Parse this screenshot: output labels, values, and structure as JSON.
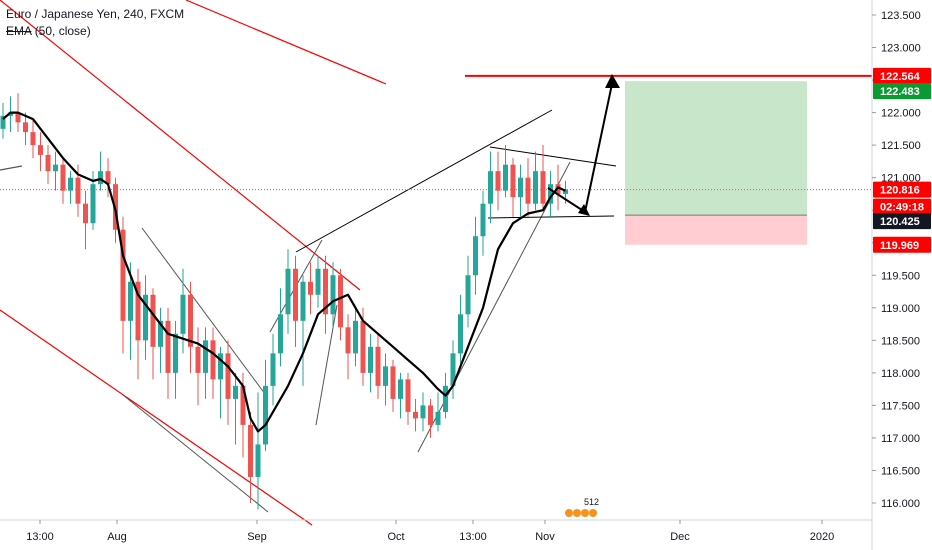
{
  "legend": {
    "symbol_line": "Euro / Japanese Yen, 240, FXCM",
    "ema_name": "EMA",
    "ema_params": "(50, close)"
  },
  "colors": {
    "up_candle": "#26a69a",
    "down_candle": "#ef5350",
    "ema": "#000000",
    "trend_red": "#ff0000",
    "trend_black": "#000000",
    "trend_gray": "#555555",
    "target_fill": "#c8e6c9",
    "stop_fill": "#ffcdd2",
    "tag_red": "#ff0000",
    "tag_green": "#0a9a32",
    "tag_dark": "#131722"
  },
  "badge_text": "512",
  "chart_data": {
    "type": "candlestick",
    "title": "Euro / Japanese Yen, 240, FXCM",
    "indicator": "EMA (50, close)",
    "ylim": [
      115.8,
      123.75
    ],
    "y_ticks": [
      "116.000",
      "116.500",
      "117.000",
      "117.500",
      "118.000",
      "118.500",
      "119.000",
      "119.500",
      "120.000",
      "120.500",
      "121.000",
      "121.500",
      "122.000",
      "122.500",
      "123.000",
      "123.500"
    ],
    "x_ticks": [
      "13:00",
      "Aug",
      "Sep",
      "Oct",
      "13:00",
      "Nov",
      "Dec",
      "2020"
    ],
    "price_tags": [
      {
        "label": "122.564",
        "style": "red"
      },
      {
        "label": "122.483",
        "style": "green"
      },
      {
        "label": "120.816",
        "style": "red"
      },
      {
        "label": "02:49:18",
        "style": "red"
      },
      {
        "label": "120.425",
        "style": "dark"
      },
      {
        "label": "119.969",
        "style": "red"
      }
    ],
    "resistance_level": 122.564,
    "last_price": 120.816,
    "position": {
      "target": 122.483,
      "entry": 120.425,
      "stop": 119.969
    },
    "ema_points": [
      [
        0,
        121.9
      ],
      [
        0.5,
        122.0
      ],
      [
        1,
        122.0
      ],
      [
        2,
        121.9
      ],
      [
        3,
        121.6
      ],
      [
        4,
        121.3
      ],
      [
        5,
        121.05
      ],
      [
        6,
        120.95
      ],
      [
        6.5,
        120.98
      ],
      [
        7,
        120.9
      ],
      [
        7.5,
        120.5
      ],
      [
        8,
        119.8
      ],
      [
        9,
        119.2
      ],
      [
        10,
        118.9
      ],
      [
        11,
        118.6
      ],
      [
        13,
        118.45
      ],
      [
        14,
        118.3
      ],
      [
        15,
        118.1
      ],
      [
        16,
        117.8
      ],
      [
        16.5,
        117.3
      ],
      [
        17,
        117.1
      ],
      [
        17.5,
        117.2
      ],
      [
        18,
        117.4
      ],
      [
        19,
        117.8
      ],
      [
        20,
        118.3
      ],
      [
        21,
        118.9
      ],
      [
        22,
        119.1
      ],
      [
        23,
        119.2
      ],
      [
        23.5,
        119.0
      ],
      [
        24,
        118.8
      ],
      [
        25,
        118.6
      ],
      [
        26,
        118.4
      ],
      [
        27,
        118.2
      ],
      [
        28,
        118.0
      ],
      [
        29,
        117.75
      ],
      [
        29.5,
        117.65
      ],
      [
        30,
        117.8
      ],
      [
        31,
        118.4
      ],
      [
        32,
        119.0
      ],
      [
        33,
        119.9
      ],
      [
        34,
        120.3
      ],
      [
        35,
        120.45
      ],
      [
        36,
        120.5
      ],
      [
        36.5,
        120.7
      ],
      [
        37,
        120.85
      ],
      [
        37.5,
        120.8
      ]
    ],
    "candles": [
      [
        0,
        121.75,
        121.95,
        122.15,
        121.6
      ],
      [
        0.5,
        121.95,
        122.0,
        122.25,
        121.7
      ],
      [
        1,
        122.0,
        121.85,
        122.3,
        121.7
      ],
      [
        1.5,
        121.85,
        121.7,
        122.0,
        121.5
      ],
      [
        2,
        121.7,
        121.5,
        121.9,
        121.3
      ],
      [
        2.5,
        121.5,
        121.35,
        121.7,
        121.1
      ],
      [
        3,
        121.35,
        121.1,
        121.5,
        120.9
      ],
      [
        3.5,
        121.1,
        121.2,
        121.4,
        120.8
      ],
      [
        4,
        121.2,
        120.8,
        121.3,
        120.6
      ],
      [
        4.5,
        120.8,
        121.0,
        121.1,
        120.6
      ],
      [
        5,
        121.0,
        120.6,
        121.2,
        120.4
      ],
      [
        5.5,
        120.6,
        120.3,
        120.8,
        119.9
      ],
      [
        6,
        120.3,
        120.9,
        121.1,
        120.2
      ],
      [
        6.5,
        120.9,
        121.1,
        121.4,
        120.8
      ],
      [
        7,
        121.1,
        120.9,
        121.3,
        120.7
      ],
      [
        7.5,
        120.9,
        120.2,
        121.0,
        120.0
      ],
      [
        8,
        120.2,
        118.8,
        120.4,
        118.3
      ],
      [
        8.5,
        118.8,
        119.4,
        119.7,
        118.2
      ],
      [
        9,
        119.4,
        118.5,
        119.6,
        117.9
      ],
      [
        9.5,
        118.5,
        119.2,
        119.5,
        118.2
      ],
      [
        10,
        119.2,
        118.4,
        119.3,
        117.9
      ],
      [
        10.5,
        118.4,
        118.8,
        119.0,
        118.0
      ],
      [
        11,
        118.8,
        118.0,
        119.0,
        117.6
      ],
      [
        11.5,
        118.0,
        118.6,
        118.8,
        117.6
      ],
      [
        12,
        118.6,
        119.2,
        119.6,
        118.3
      ],
      [
        12.5,
        119.2,
        118.4,
        119.4,
        118.0
      ],
      [
        13,
        118.4,
        118.0,
        118.7,
        117.5
      ],
      [
        13.5,
        118.0,
        118.5,
        118.7,
        117.6
      ],
      [
        14,
        118.5,
        117.9,
        118.7,
        117.6
      ],
      [
        14.5,
        117.9,
        118.3,
        118.4,
        117.3
      ],
      [
        15,
        118.3,
        117.6,
        118.5,
        117.2
      ],
      [
        15.5,
        117.6,
        117.8,
        118.0,
        116.9
      ],
      [
        16,
        117.8,
        117.2,
        118.0,
        116.7
      ],
      [
        16.5,
        117.2,
        116.4,
        117.4,
        116.0
      ],
      [
        17,
        116.4,
        116.9,
        117.7,
        115.9
      ],
      [
        17.5,
        116.9,
        117.8,
        118.2,
        116.8
      ],
      [
        18,
        117.8,
        118.3,
        118.6,
        117.5
      ],
      [
        18.5,
        118.3,
        118.9,
        119.3,
        118.1
      ],
      [
        19,
        118.9,
        119.6,
        119.9,
        118.6
      ],
      [
        19.5,
        119.6,
        118.8,
        119.8,
        118.4
      ],
      [
        20,
        118.8,
        119.4,
        119.5,
        117.8
      ],
      [
        20.5,
        119.4,
        119.2,
        119.7,
        118.9
      ],
      [
        21,
        119.2,
        119.6,
        119.8,
        119.0
      ],
      [
        21.5,
        119.6,
        118.9,
        119.8,
        118.6
      ],
      [
        22,
        118.9,
        119.5,
        119.7,
        118.7
      ],
      [
        22.5,
        119.5,
        118.7,
        119.6,
        118.5
      ],
      [
        23,
        118.7,
        118.3,
        118.9,
        117.9
      ],
      [
        23.5,
        118.3,
        118.8,
        119.0,
        118.1
      ],
      [
        24,
        118.8,
        118.0,
        119.0,
        117.8
      ],
      [
        24.5,
        118.0,
        118.4,
        118.6,
        117.7
      ],
      [
        25,
        118.4,
        117.8,
        118.6,
        117.6
      ],
      [
        25.5,
        117.8,
        118.1,
        118.3,
        117.5
      ],
      [
        26,
        118.1,
        117.6,
        118.2,
        117.4
      ],
      [
        26.5,
        117.6,
        117.9,
        118.0,
        117.3
      ],
      [
        27,
        117.9,
        117.4,
        118.0,
        117.2
      ],
      [
        27.5,
        117.4,
        117.3,
        117.6,
        117.1
      ],
      [
        28,
        117.3,
        117.5,
        117.7,
        117.1
      ],
      [
        28.5,
        117.5,
        117.2,
        117.6,
        117.0
      ],
      [
        29,
        117.2,
        117.4,
        117.7,
        117.1
      ],
      [
        29.5,
        117.4,
        117.8,
        118.0,
        117.3
      ],
      [
        30,
        117.8,
        118.3,
        118.5,
        117.6
      ],
      [
        30.5,
        118.3,
        118.9,
        119.2,
        118.1
      ],
      [
        31,
        118.9,
        119.5,
        119.8,
        118.7
      ],
      [
        31.5,
        119.5,
        120.1,
        120.4,
        119.2
      ],
      [
        32,
        120.1,
        120.6,
        120.8,
        119.8
      ],
      [
        32.5,
        120.6,
        121.1,
        121.4,
        120.3
      ],
      [
        33,
        121.1,
        120.8,
        121.4,
        120.5
      ],
      [
        33.5,
        120.8,
        121.2,
        121.5,
        120.7
      ],
      [
        34,
        121.2,
        120.7,
        121.3,
        120.4
      ],
      [
        34.5,
        120.7,
        121.0,
        121.2,
        120.4
      ],
      [
        35,
        121.0,
        120.6,
        121.3,
        120.4
      ],
      [
        35.5,
        120.6,
        121.1,
        121.4,
        120.5
      ],
      [
        36,
        121.1,
        120.6,
        121.5,
        120.5
      ],
      [
        36.5,
        120.6,
        120.9,
        121.1,
        120.4
      ],
      [
        37,
        120.9,
        120.75,
        121.2,
        120.5
      ],
      [
        37.5,
        120.75,
        120.82,
        120.95,
        120.6
      ]
    ]
  }
}
